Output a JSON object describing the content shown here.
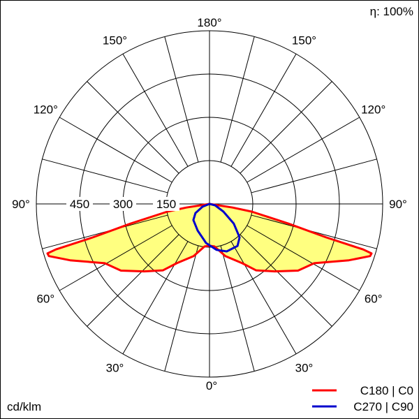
{
  "chart_data": {
    "type": "polar",
    "unit_label": "cd/klm",
    "efficiency_label": "η: 100%",
    "radial_ticks": [
      150,
      300,
      450
    ],
    "radial_max": 600,
    "grid_step_deg": 15,
    "angle_labels": [
      {
        "text": "180°",
        "angle": 180,
        "side": "center"
      },
      {
        "text": "150°",
        "angle": 150,
        "side": "left"
      },
      {
        "text": "150°",
        "angle": 150,
        "side": "right"
      },
      {
        "text": "120°",
        "angle": 120,
        "side": "left"
      },
      {
        "text": "120°",
        "angle": 120,
        "side": "right"
      },
      {
        "text": "90°",
        "angle": 90,
        "side": "left"
      },
      {
        "text": "90°",
        "angle": 90,
        "side": "right"
      },
      {
        "text": "60°",
        "angle": 60,
        "side": "left"
      },
      {
        "text": "60°",
        "angle": 60,
        "side": "right"
      },
      {
        "text": "30°",
        "angle": 30,
        "side": "left"
      },
      {
        "text": "30°",
        "angle": 30,
        "side": "right"
      },
      {
        "text": "0°",
        "angle": 0,
        "side": "center"
      }
    ],
    "fill_color": "#ffff80",
    "series": [
      {
        "name": "C180 | C0",
        "color": "#ff0000",
        "filled": true,
        "points_gamma_cd": [
          [
            -81,
            81
          ],
          [
            -79.6,
            148
          ],
          [
            -76,
            282
          ],
          [
            -74,
            421
          ],
          [
            -73.5,
            555
          ],
          [
            -73,
            587
          ],
          [
            -72,
            585
          ],
          [
            -68,
            521
          ],
          [
            -60.5,
            417
          ],
          [
            -53,
            384
          ],
          [
            -44,
            325
          ],
          [
            -35,
            281
          ],
          [
            -29,
            235
          ],
          [
            -17,
            189
          ],
          [
            -6.5,
            148
          ],
          [
            0,
            145
          ],
          [
            6.5,
            148
          ],
          [
            17,
            189
          ],
          [
            29,
            235
          ],
          [
            35,
            281
          ],
          [
            44,
            325
          ],
          [
            53,
            384
          ],
          [
            60.5,
            417
          ],
          [
            68,
            521
          ],
          [
            72,
            585
          ],
          [
            73,
            587
          ],
          [
            73.5,
            555
          ],
          [
            74,
            421
          ],
          [
            76,
            282
          ],
          [
            79.6,
            148
          ],
          [
            81,
            81
          ],
          [
            90,
            0
          ]
        ]
      },
      {
        "name": "C270 | C90",
        "color": "#0000cc",
        "filled": false,
        "points_gamma_cd": [
          [
            -90,
            0
          ],
          [
            -68,
            26
          ],
          [
            -57,
            58
          ],
          [
            -45,
            79
          ],
          [
            -24,
            101
          ],
          [
            -5,
            136
          ],
          [
            8.6,
            161
          ],
          [
            20,
            175
          ],
          [
            33.7,
            175
          ],
          [
            42,
            156
          ],
          [
            51,
            108
          ],
          [
            61,
            55
          ],
          [
            76,
            20
          ],
          [
            90,
            0
          ]
        ]
      }
    ]
  }
}
